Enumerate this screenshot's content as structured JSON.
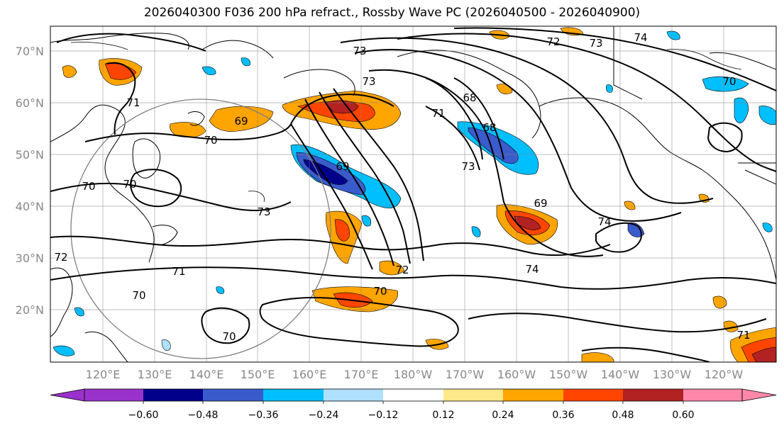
{
  "title": "2026040300 F036 200 hPa refract., Rossby Wave PC (2026040500 - 2026040900)",
  "lat_labels": [
    "70°N",
    "60°N",
    "50°N",
    "40°N",
    "30°N",
    "20°N"
  ],
  "lon_labels": [
    "120°E",
    "130°E",
    "140°E",
    "150°E",
    "160°E",
    "170°E",
    "180°W",
    "170°W",
    "160°W",
    "150°W",
    "140°W",
    "130°W",
    "120°W"
  ],
  "colorbar": {
    "colors": [
      "#9932CC",
      "#00008B",
      "#3A5BCC",
      "#00BFFF",
      "#B0E0FF",
      "#FFFFFF",
      "#FFE88A",
      "#FFA500",
      "#FF4500",
      "#B22222",
      "#FF88AA"
    ],
    "ticks": [
      "−0.60",
      "−0.48",
      "−0.36",
      "−0.24",
      "−0.12",
      "0.12",
      "0.24",
      "0.36",
      "0.48",
      "0.60"
    ]
  },
  "contour_labels": [
    "70",
    "69",
    "70",
    "70",
    "73",
    "71",
    "72",
    "70",
    "70",
    "71",
    "72",
    "73",
    "68",
    "68",
    "71",
    "69",
    "73",
    "73",
    "72",
    "73",
    "74",
    "70",
    "69",
    "74",
    "74",
    "71",
    "70"
  ]
}
